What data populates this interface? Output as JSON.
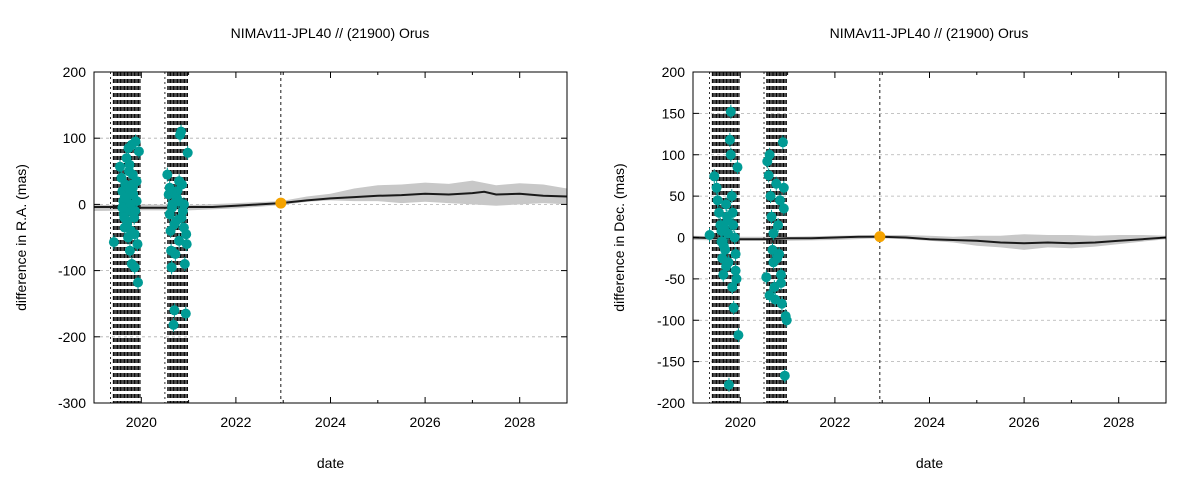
{
  "colors": {
    "observations": "#009b95",
    "reference": "#f5a300",
    "model_line": "#1a1a1a",
    "uncertainty_band": "#c8c8c8",
    "grid": "#b0b0b0",
    "observation_marks": "#000000"
  },
  "chart_data": [
    {
      "type": "scatter",
      "title": "NIMAv11-JPL40 // (21900) Orus",
      "xlabel": "date",
      "ylabel": "difference in R.A. (mas)",
      "xlim": [
        2019.0,
        2029.0
      ],
      "ylim": [
        -300,
        200
      ],
      "x_ticks": [
        2020,
        2022,
        2024,
        2026,
        2028
      ],
      "y_ticks": [
        -300,
        -200,
        -100,
        0,
        100,
        200
      ],
      "grid": true,
      "reference_epoch": 2022.95,
      "reference_point": {
        "x": 2022.95,
        "y": 2
      },
      "observation_windows": [
        [
          2019.35,
          2020.0
        ],
        [
          2020.5,
          2021.0
        ]
      ],
      "uncertainty_band": {
        "x": [
          2019.0,
          2020.0,
          2021.0,
          2022.0,
          2022.95,
          2023.5,
          2024.0,
          2024.5,
          2025.0,
          2025.5,
          2026.0,
          2026.5,
          2027.0,
          2027.5,
          2028.0,
          2028.5,
          2029.0
        ],
        "lower": [
          -10,
          -9,
          -9,
          -6,
          -1,
          4,
          6,
          5,
          5,
          2,
          4,
          2,
          0,
          -2,
          0,
          2,
          0
        ],
        "upper": [
          -1,
          0,
          -1,
          2,
          5,
          12,
          16,
          24,
          29,
          30,
          33,
          31,
          36,
          29,
          32,
          30,
          24
        ]
      },
      "model_series": {
        "x": [
          2019.0,
          2019.5,
          2020.0,
          2020.5,
          2021.0,
          2021.5,
          2022.0,
          2022.5,
          2022.95,
          2023.5,
          2024.0,
          2024.5,
          2025.0,
          2025.5,
          2026.0,
          2026.5,
          2027.0,
          2027.25,
          2027.5,
          2028.0,
          2028.5,
          2029.0
        ],
        "y": [
          -4,
          -4,
          -5,
          -5,
          -4,
          -4,
          -2,
          0,
          2,
          6,
          9,
          11,
          13,
          14,
          16,
          15,
          17,
          19,
          15,
          16,
          13,
          12
        ]
      },
      "points": {
        "x": [
          2019.42,
          2019.55,
          2019.58,
          2019.6,
          2019.62,
          2019.63,
          2019.65,
          2019.66,
          2019.68,
          2019.7,
          2019.7,
          2019.72,
          2019.73,
          2019.75,
          2019.75,
          2019.77,
          2019.78,
          2019.8,
          2019.8,
          2019.82,
          2019.83,
          2019.85,
          2019.86,
          2019.88,
          2019.9,
          2019.92,
          2019.93,
          2019.95,
          2019.6,
          2019.65,
          2019.7,
          2019.74,
          2019.78,
          2019.82,
          2019.86,
          2019.9,
          2019.64,
          2019.69,
          2019.76,
          2019.81,
          2019.87,
          2020.55,
          2020.58,
          2020.6,
          2020.62,
          2020.64,
          2020.66,
          2020.68,
          2020.7,
          2020.72,
          2020.74,
          2020.76,
          2020.78,
          2020.8,
          2020.82,
          2020.84,
          2020.86,
          2020.88,
          2020.9,
          2020.92,
          2020.94,
          2020.96,
          2020.98,
          2020.6,
          2020.65,
          2020.7,
          2020.75,
          2020.8,
          2020.85,
          2020.9,
          2020.95,
          2020.63,
          2020.78
        ],
        "y": [
          -57,
          57,
          40,
          20,
          5,
          -15,
          -35,
          30,
          10,
          -5,
          -25,
          -50,
          85,
          60,
          20,
          -10,
          -40,
          90,
          -90,
          45,
          15,
          -20,
          -95,
          95,
          35,
          -60,
          -118,
          80,
          -5,
          10,
          -30,
          50,
          0,
          25,
          -45,
          5,
          -20,
          70,
          -70,
          30,
          -10,
          45,
          15,
          -15,
          -40,
          -95,
          0,
          -182,
          -160,
          -75,
          -25,
          20,
          5,
          -55,
          105,
          110,
          30,
          -10,
          -35,
          -90,
          -165,
          -60,
          78,
          25,
          -5,
          -30,
          10,
          35,
          -20,
          0,
          -45,
          -70,
          5
        ],
        "color": "#009b95"
      }
    },
    {
      "type": "scatter",
      "title": "NIMAv11-JPL40 // (21900) Orus",
      "xlabel": "date",
      "ylabel": "difference in Dec. (mas)",
      "xlim": [
        2019.0,
        2029.0
      ],
      "ylim": [
        -200,
        200
      ],
      "x_ticks": [
        2020,
        2022,
        2024,
        2026,
        2028
      ],
      "y_ticks": [
        -200,
        -150,
        -100,
        -50,
        0,
        50,
        100,
        150,
        200
      ],
      "grid": true,
      "reference_epoch": 2022.95,
      "reference_point": {
        "x": 2022.95,
        "y": 1
      },
      "observation_windows": [
        [
          2019.35,
          2020.0
        ],
        [
          2020.5,
          2021.0
        ]
      ],
      "uncertainty_band": {
        "x": [
          2019.0,
          2020.0,
          2021.0,
          2022.0,
          2022.95,
          2023.5,
          2024.0,
          2024.5,
          2025.0,
          2025.5,
          2026.0,
          2026.5,
          2027.0,
          2027.5,
          2028.0,
          2028.5,
          2029.0
        ],
        "lower": [
          -3,
          -4,
          -4,
          -3,
          -1,
          -2,
          -4,
          -6,
          -10,
          -12,
          -15,
          -12,
          -13,
          -11,
          -8,
          -5,
          -2
        ],
        "upper": [
          2,
          1,
          1,
          2,
          3,
          3,
          2,
          1,
          2,
          2,
          4,
          3,
          3,
          2,
          3,
          3,
          2
        ]
      },
      "model_series": {
        "x": [
          2019.0,
          2019.5,
          2020.0,
          2020.5,
          2021.0,
          2021.5,
          2022.0,
          2022.5,
          2022.95,
          2023.5,
          2024.0,
          2024.5,
          2025.0,
          2025.5,
          2026.0,
          2026.5,
          2027.0,
          2027.5,
          2028.0,
          2028.5,
          2029.0
        ],
        "y": [
          0,
          -1,
          -2,
          -2,
          -1,
          -1,
          0,
          1,
          1,
          0,
          -2,
          -3,
          -4,
          -6,
          -7,
          -6,
          -7,
          -6,
          -4,
          -2,
          0
        ]
      },
      "points": {
        "x": [
          2019.35,
          2019.45,
          2019.5,
          2019.52,
          2019.55,
          2019.58,
          2019.6,
          2019.62,
          2019.64,
          2019.66,
          2019.68,
          2019.7,
          2019.72,
          2019.74,
          2019.76,
          2019.78,
          2019.8,
          2019.82,
          2019.84,
          2019.86,
          2019.88,
          2019.9,
          2019.92,
          2019.94,
          2019.96,
          2019.6,
          2019.65,
          2019.7,
          2019.75,
          2019.8,
          2019.85,
          2019.9,
          2019.63,
          2019.73,
          2019.83,
          2020.55,
          2020.57,
          2020.6,
          2020.62,
          2020.64,
          2020.66,
          2020.68,
          2020.7,
          2020.72,
          2020.74,
          2020.76,
          2020.8,
          2020.82,
          2020.84,
          2020.86,
          2020.88,
          2020.9,
          2020.92,
          2020.94,
          2020.96,
          2020.98,
          2020.62,
          2020.7,
          2020.78,
          2020.86,
          2020.92
        ],
        "y": [
          3,
          74,
          60,
          45,
          30,
          15,
          -5,
          -25,
          -45,
          10,
          -15,
          -35,
          25,
          5,
          -178,
          118,
          100,
          50,
          30,
          -85,
          0,
          -20,
          -50,
          85,
          -118,
          8,
          -10,
          40,
          -30,
          152,
          15,
          -40,
          -5,
          20,
          -60,
          -48,
          92,
          75,
          100,
          50,
          25,
          -15,
          -30,
          -60,
          -75,
          65,
          15,
          -20,
          45,
          -45,
          -80,
          115,
          60,
          -167,
          -95,
          -100,
          -70,
          5,
          -25,
          -55,
          35
        ],
        "color": "#009b95"
      }
    }
  ]
}
